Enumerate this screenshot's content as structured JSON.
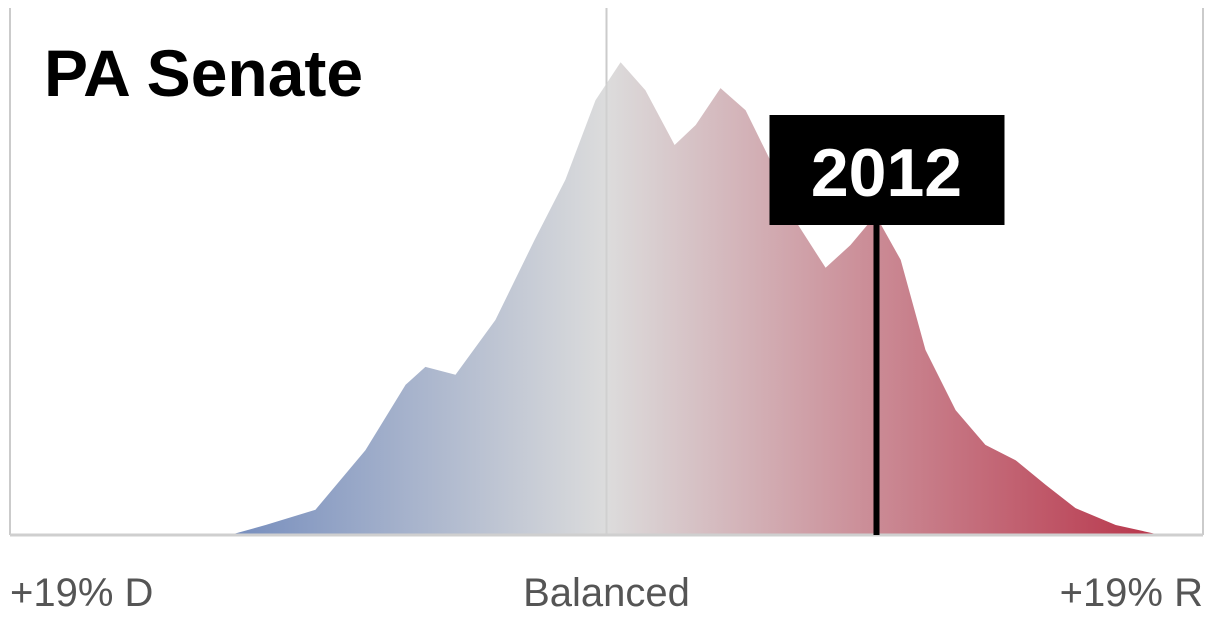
{
  "chart_data": {
    "type": "area",
    "title": "PA Senate",
    "x": [
      -12.0,
      -10.86,
      -9.27,
      -7.68,
      -6.4,
      -5.77,
      -4.81,
      -3.54,
      -2.29,
      -1.31,
      -0.35,
      0.45,
      1.24,
      2.17,
      2.84,
      3.63,
      4.43,
      5.38,
      6.02,
      6.98,
      7.77,
      8.57,
      9.37,
      10.16,
      11.12,
      12.07,
      13.03,
      13.99,
      14.94,
      16.22,
      17.65
    ],
    "values": [
      0,
      1.9,
      4.8,
      16.1,
      28.5,
      31.9,
      30.4,
      40.8,
      56.0,
      67.4,
      82.5,
      89.7,
      84.4,
      74.0,
      77.8,
      84.8,
      80.6,
      69.1,
      59.6,
      50.7,
      55.0,
      60.7,
      52.2,
      35.1,
      23.7,
      17.1,
      14.2,
      9.5,
      5.1,
      1.9,
      0
    ],
    "xlim": [
      -19,
      19
    ],
    "ylim": [
      0,
      100
    ],
    "xticks": [
      {
        "value": -19,
        "label": "+19% D"
      },
      {
        "value": 0,
        "label": "Balanced"
      },
      {
        "value": 19,
        "label": "+19% R"
      }
    ],
    "grid": true,
    "gradient_colors": [
      "#3a5fab",
      "#dcdcdc",
      "#b5283f"
    ],
    "marker": {
      "label": "2012",
      "x": 8.6
    }
  }
}
